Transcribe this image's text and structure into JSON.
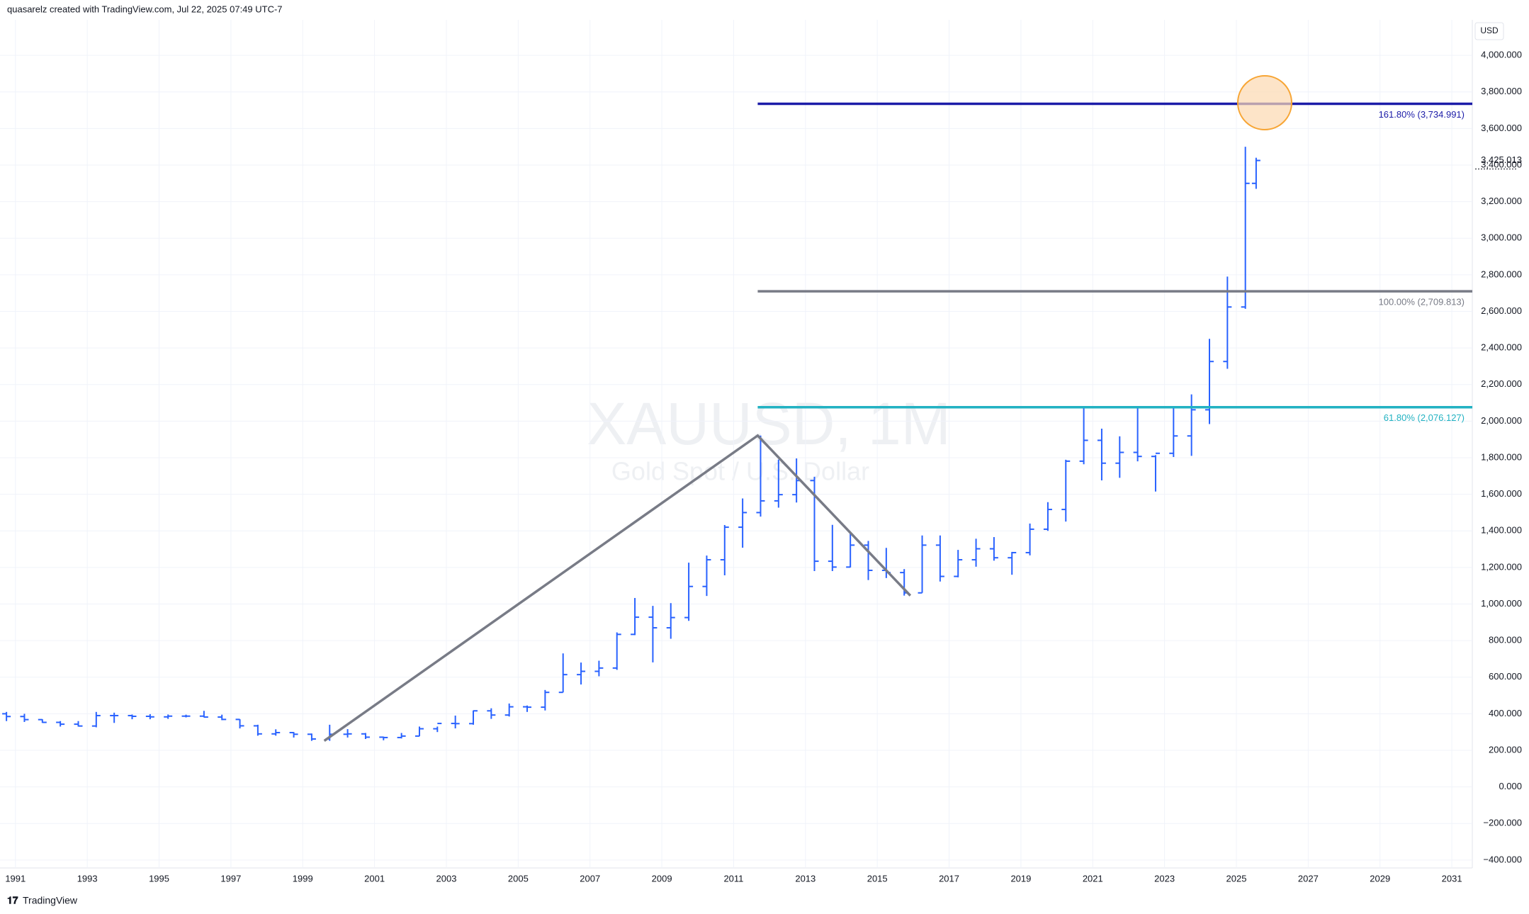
{
  "header": "quasarelz created with TradingView.com, Jul 22, 2025 07:49 UTC-7",
  "footer": "TradingView",
  "chart_data": {
    "type": "ohlc",
    "title": "XAUUSD, 1M",
    "subtitle": "Gold Spot / U.S. Dollar",
    "currency": "USD",
    "color": "#2962ff",
    "grid": true,
    "x": [
      1990.75,
      1991.25,
      1991.75,
      1992.25,
      1992.75,
      1993.25,
      1993.75,
      1994.25,
      1994.75,
      1995.25,
      1995.75,
      1996.25,
      1996.75,
      1997.25,
      1997.75,
      1998.25,
      1998.75,
      1999.25,
      1999.75,
      2000.25,
      2000.75,
      2001.25,
      2001.75,
      2002.25,
      2002.75,
      2003.25,
      2003.75,
      2004.25,
      2004.75,
      2005.25,
      2005.75,
      2006.25,
      2006.75,
      2007.25,
      2007.75,
      2008.25,
      2008.75,
      2009.25,
      2009.75,
      2010.25,
      2010.75,
      2011.25,
      2011.75,
      2012.25,
      2012.75,
      2013.25,
      2013.75,
      2014.25,
      2014.75,
      2015.25,
      2015.75,
      2016.25,
      2016.75,
      2017.25,
      2017.75,
      2018.25,
      2018.75,
      2019.25,
      2019.75,
      2020.25,
      2020.75,
      2021.25,
      2021.75,
      2022.25,
      2022.75,
      2023.25,
      2023.75,
      2024.25,
      2024.75,
      2025.25,
      2025.55
    ],
    "open": [
      400,
      385,
      368,
      353,
      343,
      333,
      390,
      390,
      386,
      383,
      387,
      387,
      382,
      369,
      334,
      290,
      297,
      288,
      262,
      288,
      290,
      272,
      270,
      278,
      318,
      347,
      346,
      416,
      393,
      438,
      436,
      517,
      614,
      632,
      650,
      834,
      928,
      870,
      926,
      1096,
      1242,
      1420,
      1500,
      1564,
      1598,
      1675,
      1234,
      1202,
      1322,
      1184,
      1172,
      1061,
      1322,
      1151,
      1242,
      1302,
      1253,
      1281,
      1409,
      1517,
      1781,
      1895,
      1770,
      1829,
      1807,
      1824,
      1919,
      2062,
      2326,
      2624,
      3300
    ],
    "high": [
      410,
      400,
      370,
      360,
      360,
      410,
      406,
      396,
      398,
      396,
      395,
      416,
      395,
      370,
      340,
      315,
      300,
      292,
      340,
      316,
      295,
      275,
      295,
      330,
      330,
      390,
      418,
      430,
      456,
      445,
      530,
      730,
      680,
      690,
      845,
      1033,
      990,
      1005,
      1226,
      1265,
      1432,
      1577,
      1921,
      1790,
      1796,
      1696,
      1433,
      1392,
      1345,
      1307,
      1191,
      1375,
      1375,
      1296,
      1357,
      1366,
      1285,
      1440,
      1557,
      1789,
      2075,
      1959,
      1917,
      2070,
      1814,
      2081,
      2146,
      2450,
      2790,
      3500,
      3440
    ],
    "low": [
      360,
      355,
      350,
      330,
      330,
      326,
      350,
      370,
      370,
      372,
      380,
      380,
      365,
      320,
      280,
      280,
      270,
      252,
      252,
      270,
      262,
      255,
      265,
      277,
      300,
      320,
      340,
      372,
      385,
      410,
      418,
      517,
      560,
      605,
      640,
      830,
      681,
      810,
      908,
      1044,
      1157,
      1308,
      1478,
      1527,
      1555,
      1180,
      1180,
      1200,
      1131,
      1142,
      1046,
      1061,
      1123,
      1146,
      1204,
      1237,
      1160,
      1266,
      1400,
      1451,
      1764,
      1676,
      1690,
      1780,
      1615,
      1804,
      1810,
      1984,
      2286,
      2614,
      3270
    ],
    "close": [
      385,
      368,
      353,
      343,
      333,
      390,
      390,
      386,
      383,
      387,
      387,
      382,
      369,
      334,
      290,
      297,
      288,
      262,
      288,
      290,
      272,
      270,
      278,
      318,
      347,
      346,
      416,
      393,
      438,
      436,
      517,
      614,
      632,
      650,
      834,
      928,
      870,
      926,
      1096,
      1242,
      1420,
      1500,
      1564,
      1598,
      1675,
      1234,
      1202,
      1322,
      1184,
      1172,
      1061,
      1322,
      1151,
      1242,
      1302,
      1253,
      1281,
      1409,
      1517,
      1781,
      1895,
      1770,
      1829,
      1807,
      1824,
      1919,
      2062,
      2326,
      2624,
      3300,
      3425
    ],
    "last_price": {
      "value": 3425.013,
      "label": "3,425.013"
    },
    "zigzag": {
      "x": [
        1999.6,
        2011.67,
        2015.92
      ],
      "y": [
        252,
        1921,
        1046
      ]
    },
    "fib_levels": [
      {
        "label": "161.80% (3,734.991)",
        "value": 3734.991,
        "color": "#1c1ca8"
      },
      {
        "label": "100.00% (2,709.813)",
        "value": 2709.813,
        "color": "#787b86"
      },
      {
        "label": "61.80% (2,076.127)",
        "value": 2076.127,
        "color": "#22b2c2"
      }
    ],
    "xlim": [
      1990.57,
      2031.57
    ],
    "xticks": [
      1991,
      1993,
      1995,
      1997,
      1999,
      2001,
      2003,
      2005,
      2007,
      2009,
      2011,
      2013,
      2015,
      2017,
      2019,
      2021,
      2023,
      2025,
      2027,
      2029,
      2031
    ],
    "ylim": [
      -443,
      4194
    ],
    "yticks": [
      {
        "value": -400,
        "label": "−400.000"
      },
      {
        "value": -200,
        "label": "−200.000"
      },
      {
        "value": 0,
        "label": "0.000"
      },
      {
        "value": 200,
        "label": "200.000"
      },
      {
        "value": 400,
        "label": "400.000"
      },
      {
        "value": 600,
        "label": "600.000"
      },
      {
        "value": 800,
        "label": "800.000"
      },
      {
        "value": 1000,
        "label": "1,000.000"
      },
      {
        "value": 1200,
        "label": "1,200.000"
      },
      {
        "value": 1400,
        "label": "1,400.000"
      },
      {
        "value": 1600,
        "label": "1,600.000"
      },
      {
        "value": 1800,
        "label": "1,800.000"
      },
      {
        "value": 2000,
        "label": "2,000.000"
      },
      {
        "value": 2200,
        "label": "2,200.000"
      },
      {
        "value": 2400,
        "label": "2,400.000"
      },
      {
        "value": 2600,
        "label": "2,600.000"
      },
      {
        "value": 2800,
        "label": "2,800.000"
      },
      {
        "value": 3000,
        "label": "3,000.000"
      },
      {
        "value": 3200,
        "label": "3,200.000"
      },
      {
        "value": 3400,
        "label": "3,400.000"
      },
      {
        "value": 3600,
        "label": "3,600.000"
      },
      {
        "value": 3800,
        "label": "3,800.000"
      },
      {
        "value": 4000,
        "label": "4,000.000"
      }
    ]
  }
}
